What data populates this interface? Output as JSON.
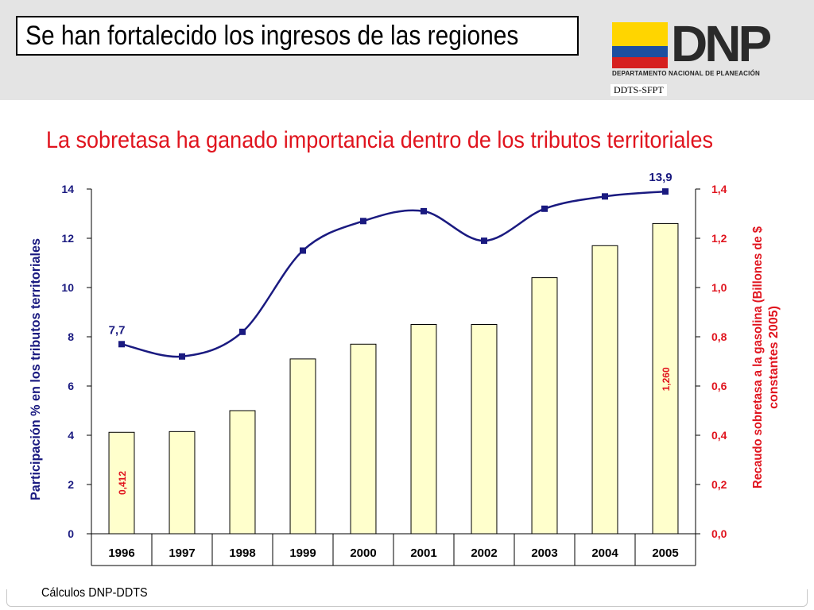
{
  "header": {
    "title": "Se han fortalecido los ingresos de las regiones",
    "logo_text": "DNP",
    "logo_subtitle": "DEPARTAMENTO NACIONAL DE PLANEACIÓN",
    "logo_code": "DDTS-SFPT"
  },
  "colors": {
    "title_red": "#e0141e",
    "line_navy": "#1a1a80",
    "bar_fill": "#ffffcc",
    "flag_yellow": "#ffd500",
    "flag_blue": "#1d4fa0",
    "flag_red": "#d6201f"
  },
  "chart_data": {
    "type": "bar+line",
    "title": "La sobretasa ha ganado importancia dentro de los tributos territoriales",
    "categories": [
      "1996",
      "1997",
      "1998",
      "1999",
      "2000",
      "2001",
      "2002",
      "2003",
      "2004",
      "2005"
    ],
    "series": [
      {
        "axis": "left",
        "type": "line",
        "values": [
          7.7,
          7.2,
          8.2,
          11.5,
          12.7,
          13.1,
          11.9,
          13.2,
          13.7,
          13.9
        ]
      },
      {
        "axis": "right",
        "type": "bar",
        "values": [
          0.412,
          0.415,
          0.5,
          0.71,
          0.77,
          0.85,
          0.85,
          1.04,
          1.17,
          1.26
        ]
      }
    ],
    "ylabel_left": "Participación % en los tributos territoriales",
    "ylabel_right": "Recaudo sobretasa a la gasolina (Billones de $ constantes 2005)",
    "ylim_left": [
      0,
      14
    ],
    "ylim_right": [
      0,
      1.4
    ],
    "yticks_left": [
      "0",
      "2",
      "4",
      "6",
      "8",
      "10",
      "12",
      "14"
    ],
    "yticks_right": [
      "0,0",
      "0,2",
      "0,4",
      "0,6",
      "0,8",
      "1,0",
      "1,2",
      "1,4"
    ],
    "line_labels": [
      {
        "index": 0,
        "text": "7,7"
      },
      {
        "index": 9,
        "text": "13,9"
      }
    ],
    "bar_labels": [
      {
        "index": 0,
        "text": "0,412"
      },
      {
        "index": 9,
        "text": "1,260"
      }
    ],
    "grid": false
  },
  "footer": {
    "note": "Cálculos DNP-DDTS"
  }
}
